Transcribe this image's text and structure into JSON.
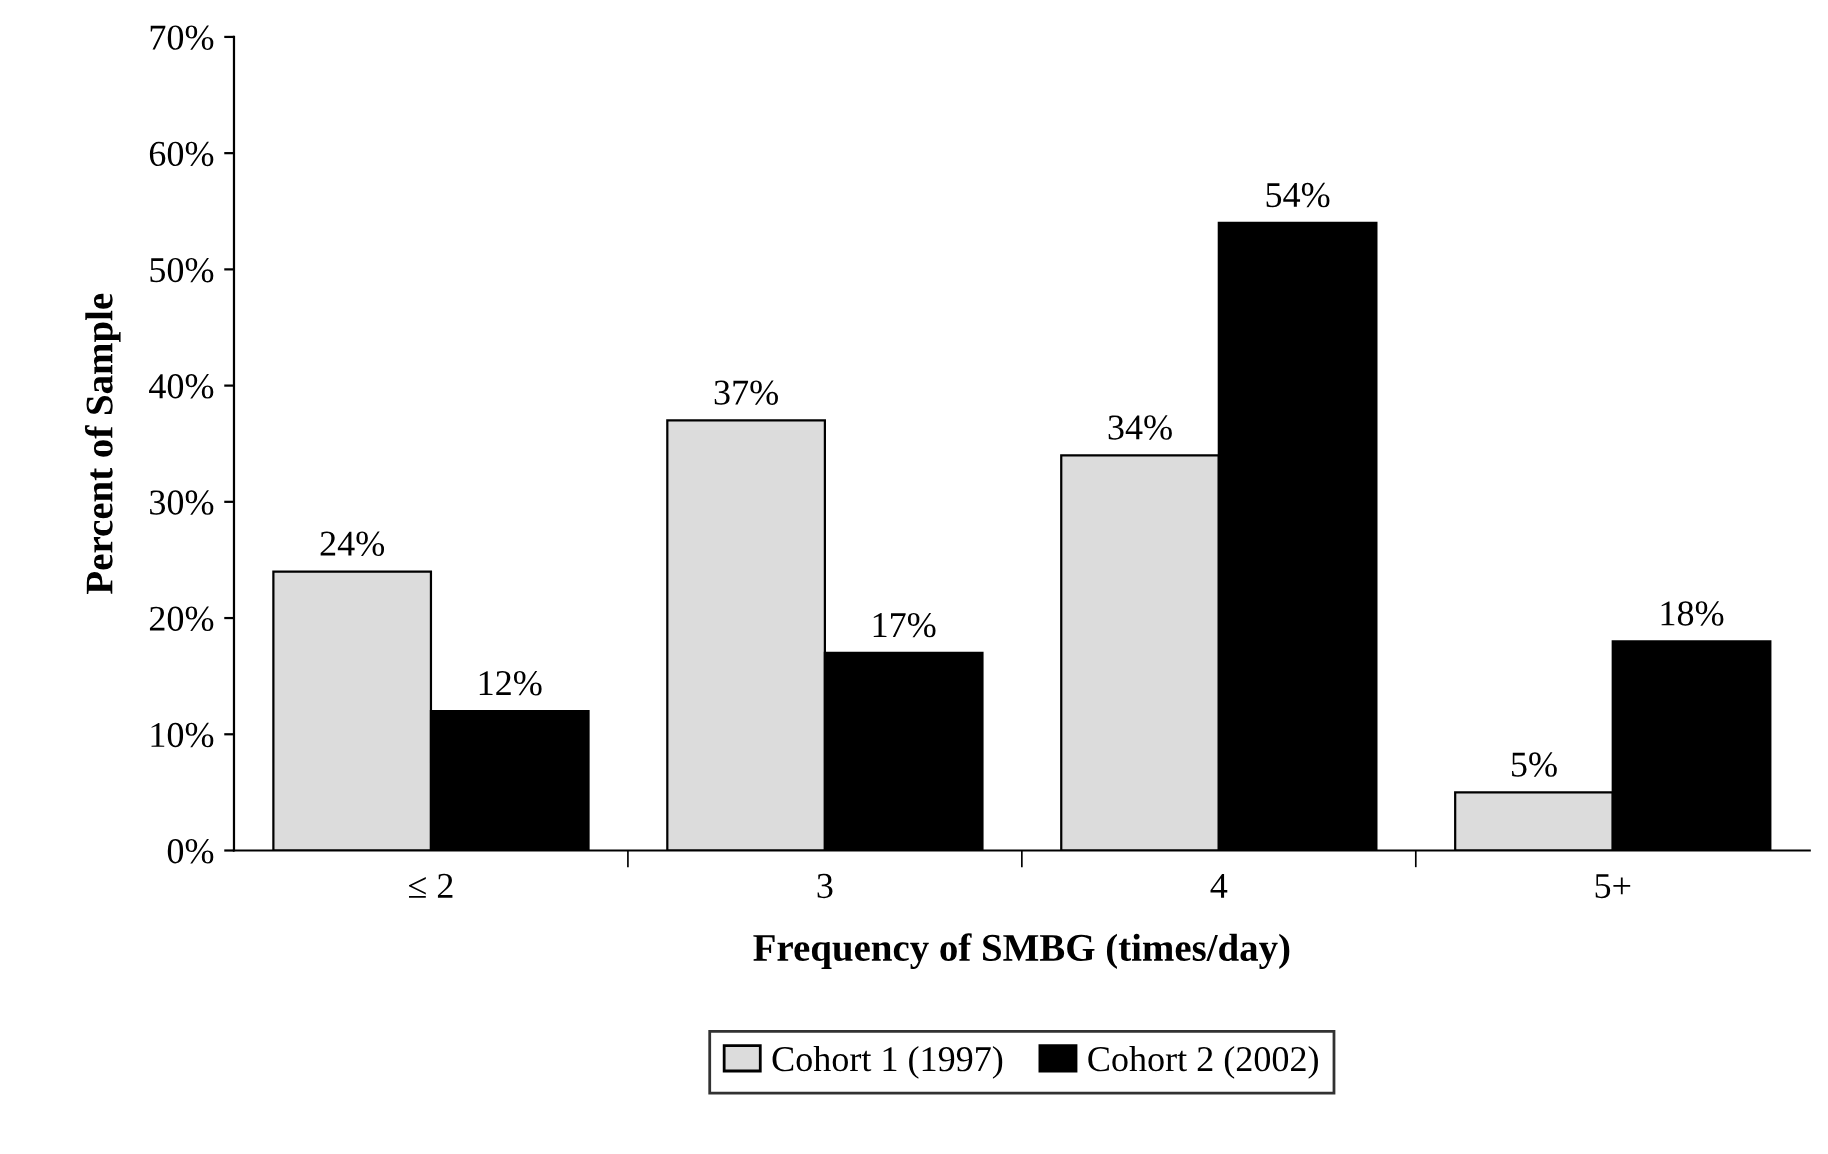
{
  "chart_data": {
    "type": "bar",
    "xlabel": "Frequency of SMBG (times/day)",
    "ylabel": "Percent of Sample",
    "categories": [
      "≤ 2",
      "3",
      "4",
      "5+"
    ],
    "series": [
      {
        "name": "Cohort 1 (1997)",
        "color": "#dcdcdc",
        "values": [
          24,
          37,
          34,
          5
        ],
        "value_labels": [
          "24%",
          "37%",
          "34%",
          "5%"
        ]
      },
      {
        "name": "Cohort 2 (2002)",
        "color": "#000000",
        "values": [
          12,
          17,
          54,
          18
        ],
        "value_labels": [
          "12%",
          "17%",
          "54%",
          "18%"
        ]
      }
    ],
    "ylim": [
      0,
      70
    ],
    "yticks": [
      {
        "value": 0,
        "label": "0%"
      },
      {
        "value": 10,
        "label": "10%"
      },
      {
        "value": 20,
        "label": "20%"
      },
      {
        "value": 30,
        "label": "30%"
      },
      {
        "value": 40,
        "label": "40%"
      },
      {
        "value": 50,
        "label": "50%"
      },
      {
        "value": 60,
        "label": "60%"
      },
      {
        "value": 70,
        "label": "70%"
      }
    ],
    "grid": false,
    "legend": "bottom"
  }
}
